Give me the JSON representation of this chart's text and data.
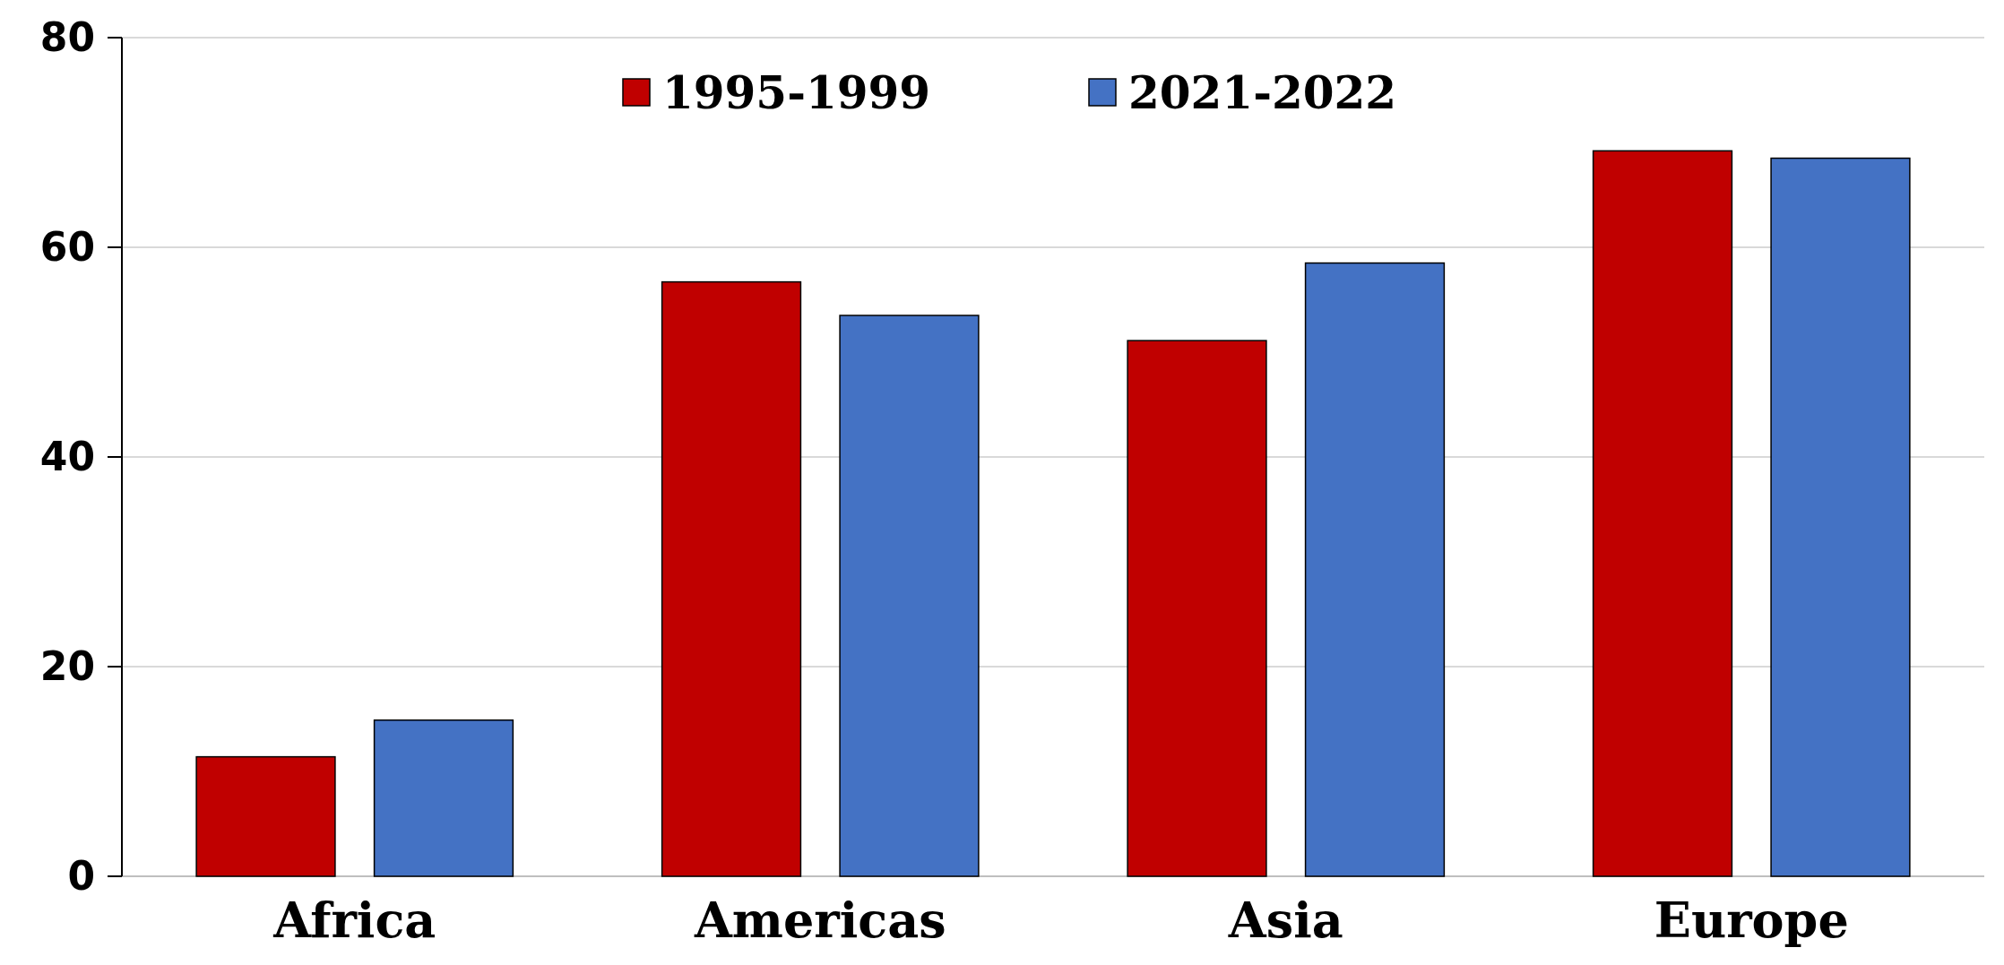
{
  "chart_data": {
    "type": "bar",
    "categories": [
      "Africa",
      "Americas",
      "Asia",
      "Europe"
    ],
    "series": [
      {
        "name": "1995-1999",
        "color": "#c00000",
        "values": [
          11.4,
          56.7,
          51.1,
          69.2
        ]
      },
      {
        "name": "2021-2022",
        "color": "#4472c4",
        "values": [
          14.9,
          53.5,
          58.5,
          68.5
        ]
      }
    ],
    "ylim": [
      0,
      80
    ],
    "yticks": [
      0,
      20,
      40,
      60,
      80
    ],
    "grid": "y",
    "legend": "top"
  }
}
